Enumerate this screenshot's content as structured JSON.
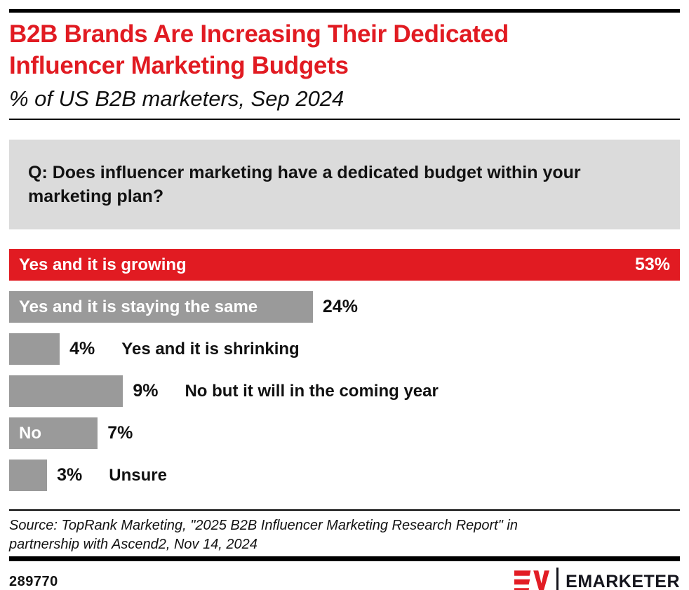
{
  "header": {
    "title": "B2B Brands Are Increasing Their Dedicated Influencer Marketing Budgets",
    "subtitle": "% of US B2B marketers, Sep 2024"
  },
  "question": "Q: Does influencer marketing have a dedicated budget within your marketing plan?",
  "chart_data": {
    "type": "bar",
    "orientation": "horizontal",
    "title": "B2B Brands Are Increasing Their Dedicated Influencer Marketing Budgets",
    "subtitle": "% of US B2B marketers, Sep 2024",
    "xlabel": "",
    "ylabel": "",
    "xlim": [
      0,
      53
    ],
    "grid": false,
    "legend": "none",
    "categories": [
      "Yes and it is growing",
      "Yes and it is staying the same",
      "Yes and it is shrinking",
      "No but it will in the coming year",
      "No",
      "Unsure"
    ],
    "values": [
      53,
      24,
      4,
      9,
      7,
      3
    ],
    "bars": [
      {
        "label": "Yes and it is growing",
        "value": 53,
        "value_label": "53%",
        "color": "red",
        "label_inside": true,
        "value_inside": true
      },
      {
        "label": "Yes and it is staying the same",
        "value": 24,
        "value_label": "24%",
        "color": "gray",
        "label_inside": true,
        "value_inside": false
      },
      {
        "label": "Yes and it is shrinking",
        "value": 4,
        "value_label": "4%",
        "color": "gray",
        "label_inside": false,
        "value_inside": false
      },
      {
        "label": "No but it will in the coming year",
        "value": 9,
        "value_label": "9%",
        "color": "gray",
        "label_inside": false,
        "value_inside": false
      },
      {
        "label": "No",
        "value": 7,
        "value_label": "7%",
        "color": "gray",
        "label_inside": true,
        "value_inside": false
      },
      {
        "label": "Unsure",
        "value": 3,
        "value_label": "3%",
        "color": "gray",
        "label_inside": false,
        "value_inside": false
      }
    ]
  },
  "source": "Source: TopRank Marketing, \"2025 B2B Influencer Marketing Research Report\" in partnership with Ascend2, Nov 14, 2024",
  "footer": {
    "chart_id": "289770",
    "brand_wordmark": "EMARKETER",
    "logo_monogram": "EM"
  },
  "colors": {
    "accent_red": "#E11B22",
    "bar_gray": "#9A9A9A",
    "question_bg": "#DBDBDB",
    "text_dark": "#111111",
    "logo_dark": "#15151D",
    "logo_red": "#E21D25"
  }
}
